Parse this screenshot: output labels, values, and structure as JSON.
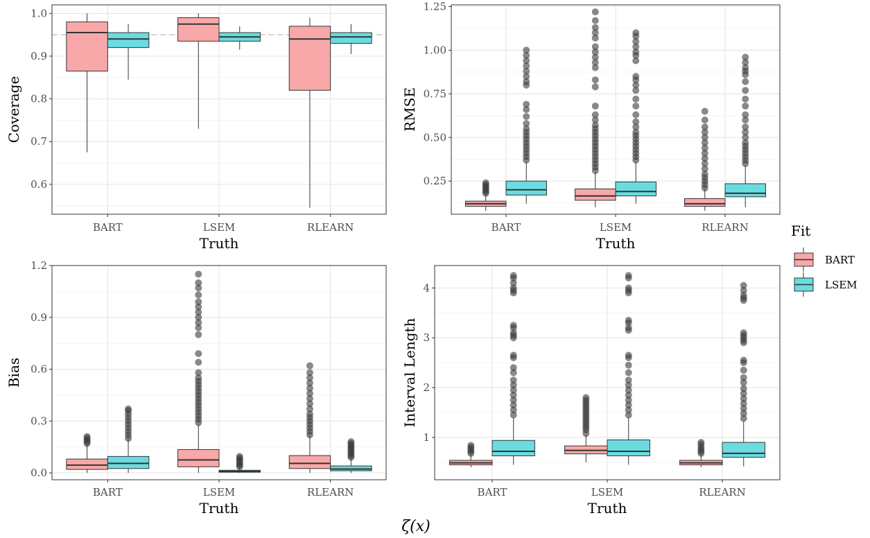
{
  "figure": {
    "caption": "ζ(x)"
  },
  "legend": {
    "title": "Fit",
    "items": [
      {
        "label": "BART",
        "color": "#F8A8A8"
      },
      {
        "label": "LSEM",
        "color": "#6ADCDF"
      }
    ]
  },
  "chart_data": [
    {
      "type": "box",
      "panel": "top-left",
      "xlabel": "Truth",
      "ylabel": "Coverage",
      "categories": [
        "BART",
        "LSEM",
        "RLEARN"
      ],
      "ylim": [
        0.53,
        1.02
      ],
      "yticks": [
        0.6,
        0.7,
        0.8,
        0.9,
        1.0
      ],
      "ytick_labels": [
        "0.6",
        "0.7",
        "0.8",
        "0.9",
        "1.0"
      ],
      "reference_line": 0.95,
      "grid": true,
      "series": [
        {
          "name": "BART",
          "boxes": [
            {
              "min": 0.675,
              "q1": 0.865,
              "median": 0.955,
              "q3": 0.98,
              "max": 1.0,
              "outliers": []
            },
            {
              "min": 0.73,
              "q1": 0.935,
              "median": 0.975,
              "q3": 0.99,
              "max": 1.0,
              "outliers": []
            },
            {
              "min": 0.545,
              "q1": 0.82,
              "median": 0.94,
              "q3": 0.97,
              "max": 0.99,
              "outliers": []
            }
          ]
        },
        {
          "name": "LSEM",
          "boxes": [
            {
              "min": 0.845,
              "q1": 0.92,
              "median": 0.94,
              "q3": 0.955,
              "max": 0.975,
              "outliers": []
            },
            {
              "min": 0.915,
              "q1": 0.935,
              "median": 0.945,
              "q3": 0.955,
              "max": 0.97,
              "outliers": []
            },
            {
              "min": 0.905,
              "q1": 0.93,
              "median": 0.945,
              "q3": 0.955,
              "max": 0.975,
              "outliers": []
            }
          ]
        }
      ]
    },
    {
      "type": "box",
      "panel": "top-right",
      "xlabel": "Truth",
      "ylabel": "RMSE",
      "categories": [
        "BART",
        "LSEM",
        "RLEARN"
      ],
      "ylim": [
        0.06,
        1.26
      ],
      "yticks": [
        0.25,
        0.5,
        0.75,
        1.0,
        1.25
      ],
      "ytick_labels": [
        "0.25",
        "0.50",
        "0.75",
        "1.00",
        "1.25"
      ],
      "grid": true,
      "series": [
        {
          "name": "BART",
          "boxes": [
            {
              "min": 0.08,
              "q1": 0.105,
              "median": 0.12,
              "q3": 0.135,
              "max": 0.175,
              "outliers": [
                0.18,
                0.19,
                0.2,
                0.21,
                0.22,
                0.23,
                0.24
              ]
            },
            {
              "min": 0.1,
              "q1": 0.14,
              "median": 0.165,
              "q3": 0.205,
              "max": 0.3,
              "outliers": [
                0.31,
                0.33,
                0.35,
                0.37,
                0.39,
                0.41,
                0.43,
                0.45,
                0.47,
                0.49,
                0.51,
                0.53,
                0.55,
                0.57,
                0.6,
                0.63,
                0.68,
                0.79,
                0.83,
                0.9,
                0.93,
                0.96,
                0.99,
                1.02,
                1.07,
                1.1,
                1.13,
                1.17,
                1.22
              ]
            },
            {
              "min": 0.08,
              "q1": 0.105,
              "median": 0.12,
              "q3": 0.15,
              "max": 0.205,
              "outliers": [
                0.21,
                0.23,
                0.25,
                0.27,
                0.29,
                0.32,
                0.35,
                0.38,
                0.41,
                0.44,
                0.47,
                0.5,
                0.53,
                0.56,
                0.6,
                0.65
              ]
            }
          ]
        },
        {
          "name": "LSEM",
          "boxes": [
            {
              "min": 0.12,
              "q1": 0.17,
              "median": 0.2,
              "q3": 0.25,
              "max": 0.36,
              "outliers": [
                0.37,
                0.39,
                0.41,
                0.43,
                0.45,
                0.47,
                0.49,
                0.51,
                0.53,
                0.55,
                0.58,
                0.62,
                0.66,
                0.69,
                0.8,
                0.82,
                0.85,
                0.88,
                0.91,
                0.94,
                0.97,
                1.0
              ]
            },
            {
              "min": 0.12,
              "q1": 0.165,
              "median": 0.19,
              "q3": 0.245,
              "max": 0.36,
              "outliers": [
                0.37,
                0.39,
                0.41,
                0.43,
                0.45,
                0.47,
                0.49,
                0.51,
                0.53,
                0.56,
                0.59,
                0.63,
                0.68,
                0.72,
                0.77,
                0.8,
                0.83,
                0.85,
                0.94,
                0.97,
                0.99,
                1.02,
                1.05,
                1.08,
                1.1
              ]
            },
            {
              "min": 0.1,
              "q1": 0.16,
              "median": 0.18,
              "q3": 0.235,
              "max": 0.34,
              "outliers": [
                0.35,
                0.37,
                0.39,
                0.41,
                0.43,
                0.45,
                0.47,
                0.5,
                0.53,
                0.56,
                0.6,
                0.63,
                0.68,
                0.72,
                0.77,
                0.82,
                0.86,
                0.88,
                0.9,
                0.93,
                0.96
              ]
            }
          ]
        }
      ]
    },
    {
      "type": "box",
      "panel": "bottom-left",
      "xlabel": "Truth",
      "ylabel": "Bias",
      "categories": [
        "BART",
        "LSEM",
        "RLEARN"
      ],
      "ylim": [
        -0.04,
        1.2
      ],
      "yticks": [
        0.0,
        0.3,
        0.6,
        0.9,
        1.2
      ],
      "ytick_labels": [
        "0.0",
        "0.3",
        "0.6",
        "0.9",
        "1.2"
      ],
      "grid": true,
      "series": [
        {
          "name": "BART",
          "boxes": [
            {
              "min": 0.0,
              "q1": 0.02,
              "median": 0.045,
              "q3": 0.08,
              "max": 0.165,
              "outliers": [
                0.17,
                0.18,
                0.19,
                0.2,
                0.21
              ]
            },
            {
              "min": 0.0,
              "q1": 0.035,
              "median": 0.075,
              "q3": 0.135,
              "max": 0.28,
              "outliers": [
                0.29,
                0.31,
                0.33,
                0.35,
                0.37,
                0.39,
                0.41,
                0.43,
                0.45,
                0.47,
                0.49,
                0.51,
                0.53,
                0.55,
                0.58,
                0.64,
                0.69,
                0.8,
                0.84,
                0.87,
                0.9,
                0.93,
                0.96,
                0.99,
                1.03,
                1.07,
                1.1,
                1.15
              ]
            },
            {
              "min": 0.0,
              "q1": 0.025,
              "median": 0.055,
              "q3": 0.1,
              "max": 0.215,
              "outliers": [
                0.22,
                0.24,
                0.26,
                0.28,
                0.3,
                0.32,
                0.34,
                0.37,
                0.4,
                0.43,
                0.46,
                0.49,
                0.52,
                0.55,
                0.58,
                0.62
              ]
            }
          ]
        },
        {
          "name": "LSEM",
          "boxes": [
            {
              "min": 0.0,
              "q1": 0.025,
              "median": 0.055,
              "q3": 0.095,
              "max": 0.195,
              "outliers": [
                0.2,
                0.22,
                0.24,
                0.26,
                0.28,
                0.3,
                0.32,
                0.34,
                0.36,
                0.37
              ]
            },
            {
              "min": 0.0,
              "q1": 0.004,
              "median": 0.008,
              "q3": 0.015,
              "max": 0.03,
              "outliers": [
                0.035,
                0.045,
                0.055,
                0.065,
                0.075,
                0.085,
                0.095
              ]
            },
            {
              "min": 0.0,
              "q1": 0.012,
              "median": 0.022,
              "q3": 0.04,
              "max": 0.08,
              "outliers": [
                0.09,
                0.1,
                0.11,
                0.12,
                0.13,
                0.14,
                0.15,
                0.16,
                0.17,
                0.18
              ]
            }
          ]
        }
      ]
    },
    {
      "type": "box",
      "panel": "bottom-right",
      "xlabel": "Truth",
      "ylabel": "Interval Length",
      "categories": [
        "BART",
        "LSEM",
        "RLEARN"
      ],
      "ylim": [
        0.15,
        4.45
      ],
      "yticks": [
        1,
        2,
        3,
        4
      ],
      "ytick_labels": [
        "1",
        "2",
        "3",
        "4"
      ],
      "grid": true,
      "series": [
        {
          "name": "BART",
          "boxes": [
            {
              "min": 0.4,
              "q1": 0.45,
              "median": 0.49,
              "q3": 0.54,
              "max": 0.65,
              "outliers": [
                0.68,
                0.72,
                0.76,
                0.8,
                0.84
              ]
            },
            {
              "min": 0.5,
              "q1": 0.67,
              "median": 0.74,
              "q3": 0.83,
              "max": 1.05,
              "outliers": [
                1.08,
                1.15,
                1.2,
                1.25,
                1.3,
                1.35,
                1.4,
                1.45,
                1.5,
                1.55,
                1.6,
                1.65,
                1.7,
                1.75,
                1.8
              ]
            },
            {
              "min": 0.4,
              "q1": 0.45,
              "median": 0.49,
              "q3": 0.54,
              "max": 0.65,
              "outliers": [
                0.68,
                0.72,
                0.76,
                0.8,
                0.86,
                0.9
              ]
            }
          ]
        },
        {
          "name": "LSEM",
          "boxes": [
            {
              "min": 0.45,
              "q1": 0.63,
              "median": 0.72,
              "q3": 0.94,
              "max": 1.4,
              "outliers": [
                1.45,
                1.55,
                1.65,
                1.75,
                1.85,
                1.95,
                2.05,
                2.15,
                2.3,
                2.4,
                2.6,
                2.65,
                3.0,
                3.05,
                3.1,
                3.2,
                3.25,
                3.9,
                3.95,
                4.0,
                4.1,
                4.2,
                4.25
              ]
            },
            {
              "min": 0.45,
              "q1": 0.63,
              "median": 0.72,
              "q3": 0.95,
              "max": 1.4,
              "outliers": [
                1.45,
                1.55,
                1.65,
                1.75,
                1.85,
                1.95,
                2.05,
                2.15,
                2.3,
                2.45,
                2.6,
                2.65,
                3.15,
                3.2,
                3.3,
                3.35,
                3.9,
                3.95,
                4.0,
                4.2,
                4.25
              ]
            },
            {
              "min": 0.42,
              "q1": 0.6,
              "median": 0.68,
              "q3": 0.9,
              "max": 1.33,
              "outliers": [
                1.38,
                1.48,
                1.58,
                1.68,
                1.78,
                1.88,
                1.98,
                2.1,
                2.2,
                2.35,
                2.5,
                2.55,
                2.9,
                2.95,
                3.0,
                3.05,
                3.1,
                3.75,
                3.8,
                3.85,
                3.95,
                4.05
              ]
            }
          ]
        }
      ]
    }
  ]
}
